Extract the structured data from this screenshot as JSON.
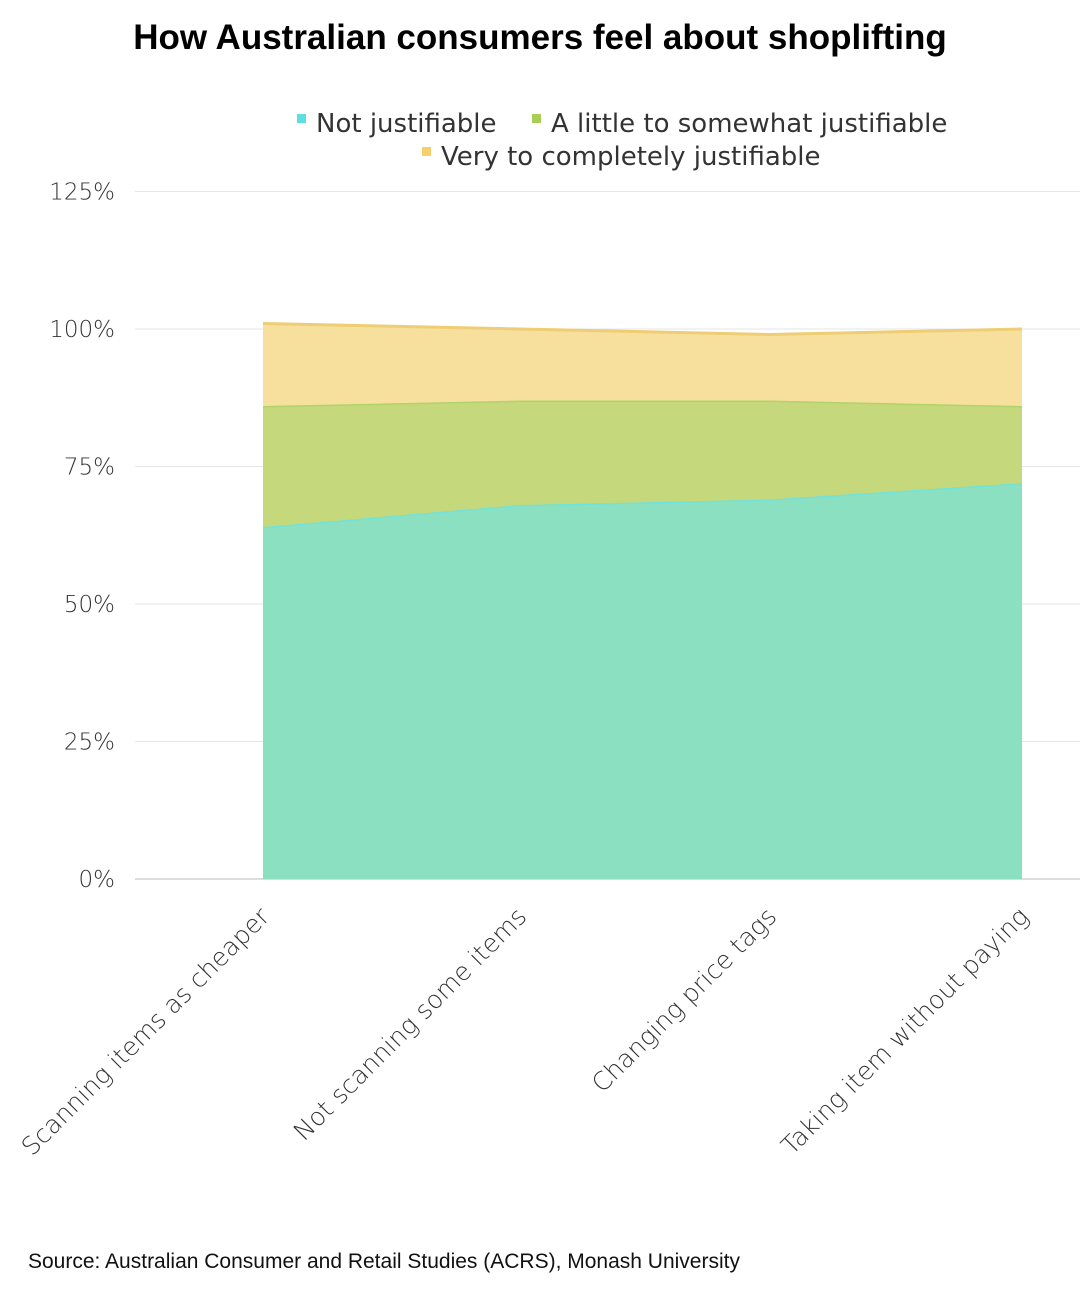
{
  "chart_data": {
    "type": "area",
    "stacked": true,
    "title": "How Australian consumers feel about shoplifting",
    "categories": [
      "Scanning items as cheaper",
      "Not scanning some items",
      "Changing price tags",
      "Taking item without paying"
    ],
    "series": [
      {
        "name": "Not justifiable",
        "values": [
          64,
          68,
          69,
          72
        ],
        "color": "#8ce0c2",
        "legend_color": "#5ddfe0",
        "line_color": "#6fe3dc"
      },
      {
        "name": "A little to somewhat justifiable",
        "values": [
          22,
          19,
          18,
          14
        ],
        "color": "#c5d87b",
        "legend_color": "#a8cf55",
        "line_color": "#b2d26a"
      },
      {
        "name": "Very to completely justifiable",
        "values": [
          15,
          13,
          12,
          14
        ],
        "color": "#f7e09e",
        "legend_color": "#f5cf6a",
        "line_color": "#efcd75"
      }
    ],
    "ylim": [
      0,
      125
    ],
    "yticks": [
      "0%",
      "25%",
      "50%",
      "75%",
      "100%",
      "125%"
    ],
    "grid": true,
    "legend_position": "top"
  },
  "source": "Source: Australian Consumer and Retail Studies (ACRS), Monash University"
}
